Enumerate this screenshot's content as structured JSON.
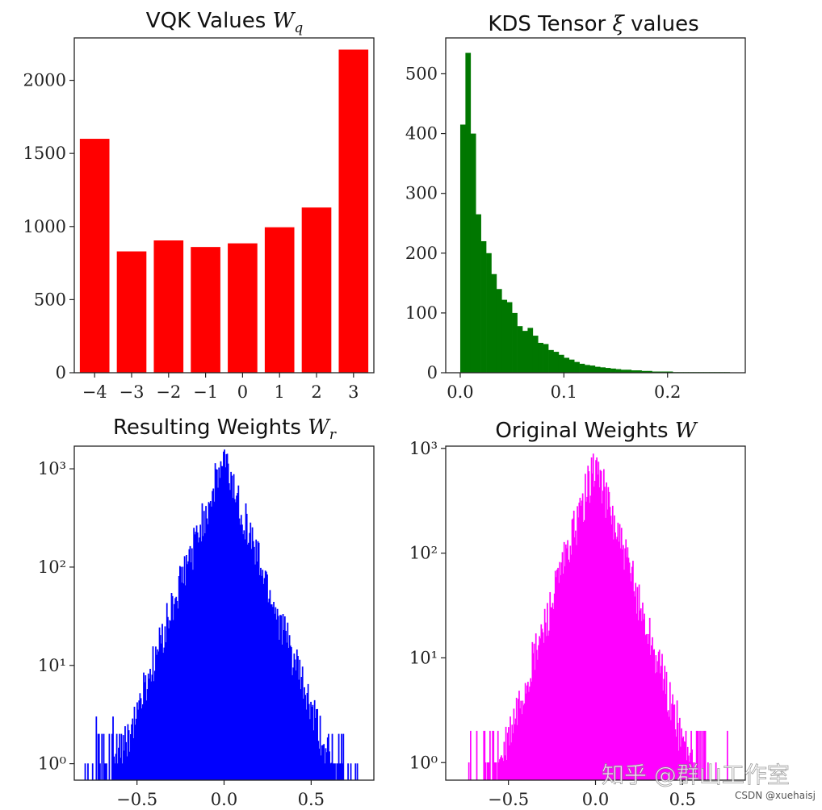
{
  "chart_data": [
    {
      "id": "vqk",
      "type": "bar",
      "title": "VQK Values W_q",
      "categories": [
        -4,
        -3,
        -2,
        -1,
        0,
        1,
        2,
        3
      ],
      "tick_labels": [
        "−4",
        "−3",
        "−2",
        "−1",
        "0",
        "1",
        "2",
        "3"
      ],
      "values": [
        1600,
        830,
        905,
        860,
        885,
        995,
        1130,
        2210
      ],
      "ylim": [
        0,
        2290
      ],
      "yticks": [
        0,
        500,
        1000,
        1500,
        2000
      ],
      "color": "#ff0000"
    },
    {
      "id": "kds",
      "type": "bar",
      "title": "KDS Tensor ξ values",
      "bin_start": 0.0,
      "bin_width": 0.005,
      "values": [
        415,
        535,
        400,
        265,
        220,
        200,
        165,
        140,
        122,
        118,
        100,
        78,
        70,
        75,
        62,
        50,
        48,
        38,
        35,
        30,
        25,
        22,
        18,
        15,
        13,
        12,
        10,
        9,
        8,
        7,
        6,
        5,
        5,
        4,
        4,
        3,
        3,
        2,
        2,
        2,
        2,
        1,
        1,
        1,
        1,
        1,
        1,
        1,
        1,
        1,
        1,
        1
      ],
      "xlim": [
        -0.014,
        0.275
      ],
      "ylim": [
        0,
        560
      ],
      "xticks": [
        0.0,
        0.1,
        0.2
      ],
      "xtick_labels": [
        "0.0",
        "0.1",
        "0.2"
      ],
      "yticks": [
        0,
        100,
        200,
        300,
        400,
        500
      ],
      "color": "#007700"
    },
    {
      "id": "resulting",
      "type": "bar",
      "title": "Resulting Weights W_r",
      "yscale": "log",
      "peak_x": 0.0,
      "peak_count": 1250,
      "decay_scale": 0.085,
      "support": [
        -0.8,
        0.8
      ],
      "xlim": [
        -0.86,
        0.86
      ],
      "ylim": [
        0.68,
        1700
      ],
      "xticks": [
        -0.5,
        0.0,
        0.5
      ],
      "xtick_labels": [
        "−0.5",
        "0.0",
        "0.5"
      ],
      "yticks": [
        1,
        10,
        100,
        1000
      ],
      "ytick_labels": [
        "10⁰",
        "10¹",
        "10²",
        "10³"
      ],
      "color": "#0000ff"
    },
    {
      "id": "original",
      "type": "bar",
      "title": "Original Weights W",
      "yscale": "log",
      "peak_x": 0.0,
      "peak_count": 720,
      "decay_scale": 0.082,
      "support": [
        -0.76,
        0.76
      ],
      "xlim": [
        -0.86,
        0.86
      ],
      "ylim": [
        0.68,
        1050
      ],
      "xticks": [
        -0.5,
        0.0,
        0.5
      ],
      "xtick_labels": [
        "−0.5",
        "0.0",
        "0.5"
      ],
      "yticks": [
        1,
        10,
        100,
        1000
      ],
      "ytick_labels": [
        "10⁰",
        "10¹",
        "10²",
        "10³"
      ],
      "color": "#ff00ff"
    }
  ],
  "watermark": {
    "main": "知乎 @群山工作室",
    "sub": "CSDN @xuehaisj"
  }
}
